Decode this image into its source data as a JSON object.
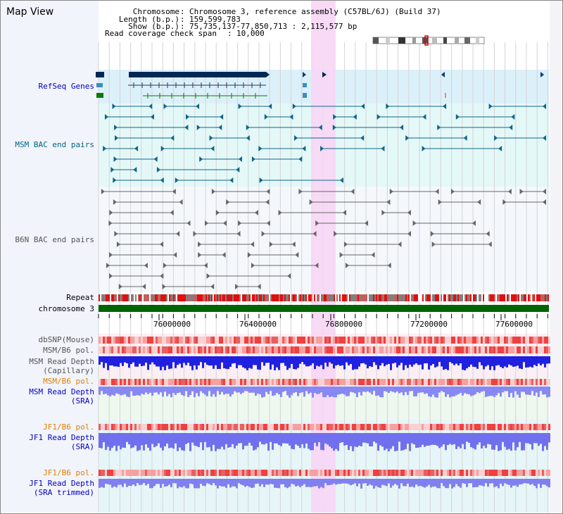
{
  "title": "Map View",
  "info": {
    "chromosome_label": "Chromosome",
    "chromosome_value": "Chromosome 3, reference assembly (C57BL/6J) (Build 37)",
    "length_label": "Length (b.p.)",
    "length_value": "159,599,783",
    "show_label": "Show (b.p.)",
    "show_value": "75,735,137-77,850,713 : 2,115,577 bp",
    "coverage_label": "Read coverage check span",
    "coverage_value": "10,000"
  },
  "tracks": {
    "refseq": "RefSeq Genes",
    "msm_bac": "MSM BAC end pairs",
    "b6n_bac": "B6N BAC end pairs",
    "repeat": "Repeat",
    "chromosome": "chromosome 3",
    "dbsnp": "dbSNP(Mouse)",
    "msm_b6_pol_1": "MSM/B6 pol.",
    "msm_depth_cap_1": "MSM Read Depth",
    "msm_depth_cap_2": "(Capillary)",
    "msm_b6_pol_2": "MSM/B6 pol.",
    "msm_depth_sra_1": "MSM Read Depth",
    "msm_depth_sra_2": "(SRA)",
    "jf1_b6_pol_1": "JF1/B6 pol.",
    "jf1_depth_sra_1": "JF1 Read Depth",
    "jf1_depth_sra_2": "(SRA)",
    "jf1_b6_pol_2": "JF1/B6 pol.",
    "jf1_depth_trim_1": "JF1 Read Depth",
    "jf1_depth_trim_2": "(SRA trimmed)"
  },
  "axis_ticks": [
    "76000000",
    "76400000",
    "76800000",
    "77200000",
    "77600000"
  ],
  "colors": {
    "refseq_label": "#0000c0",
    "msm_bac_label": "#006680",
    "b6n_bac_label": "#555555",
    "pol_label": "#e08000",
    "depth_label": "#0000c0",
    "highlight": "#f7d6f5",
    "chromosome_bar": "#006400"
  }
}
